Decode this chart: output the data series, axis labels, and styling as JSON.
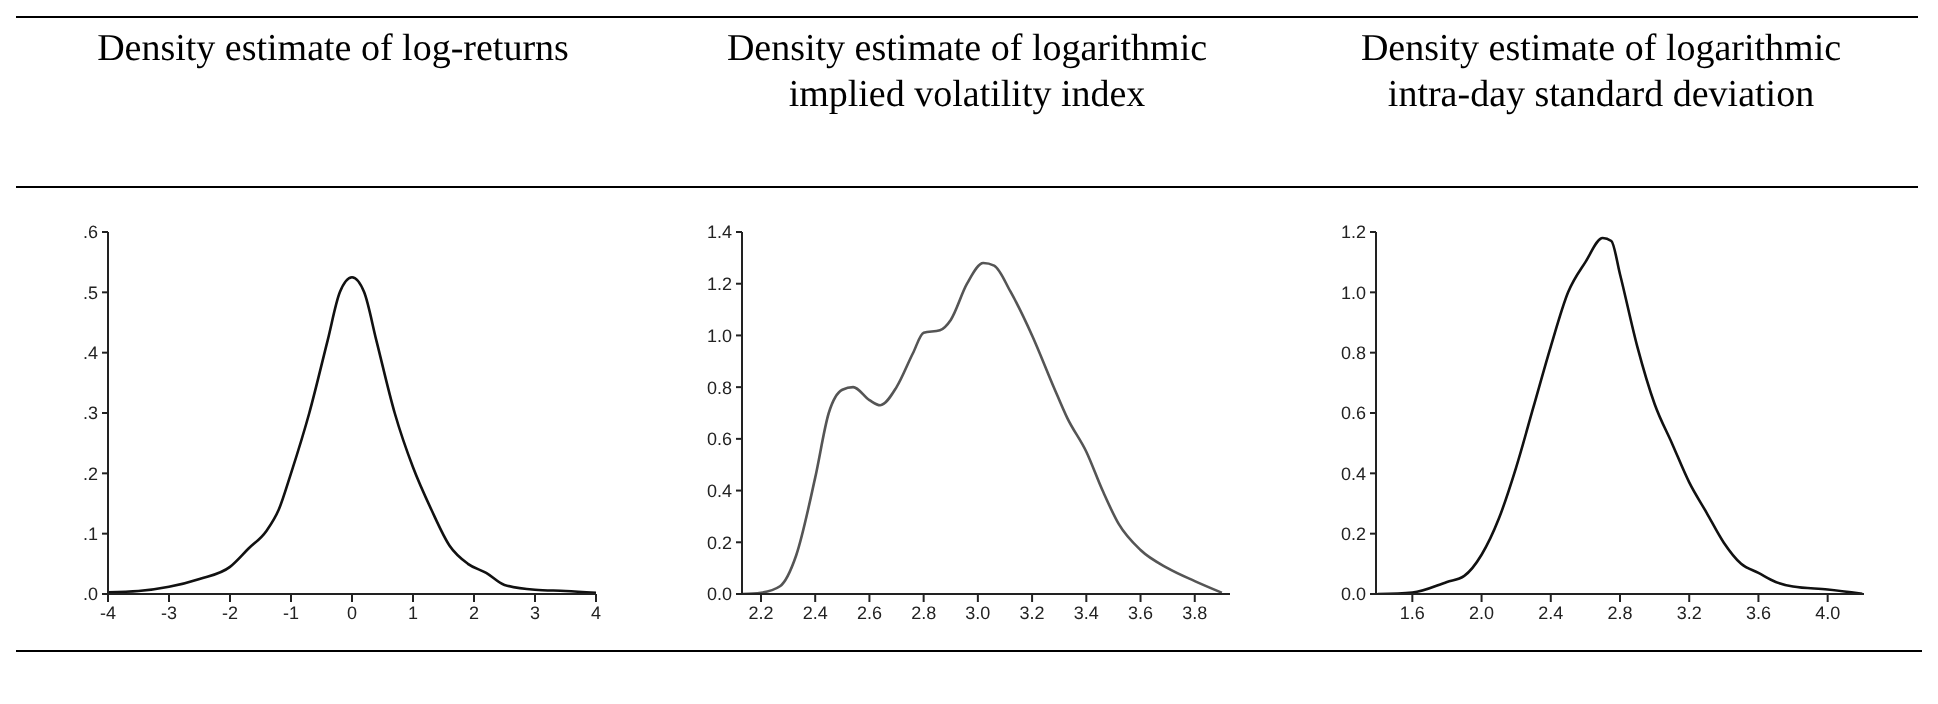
{
  "chart_data": [
    {
      "type": "line",
      "title": "Density estimate of log-returns",
      "xlim": [
        -4,
        4
      ],
      "xticks": [
        -4,
        -3,
        -2,
        -1,
        0,
        1,
        2,
        3,
        4
      ],
      "ylim": [
        0,
        0.6
      ],
      "yticks": [
        {
          "value": 0,
          "label": ".0"
        },
        {
          "value": 0.1,
          "label": ".1"
        },
        {
          "value": 0.2,
          "label": ".2"
        },
        {
          "value": 0.3,
          "label": ".3"
        },
        {
          "value": 0.4,
          "label": ".4"
        },
        {
          "value": 0.5,
          "label": ".5"
        },
        {
          "value": 0.6,
          "label": ".6"
        }
      ],
      "grid": false,
      "legend": false,
      "marker": "none",
      "line_style": "solid",
      "x": [
        -4,
        -3.5,
        -3,
        -2.5,
        -2,
        -1.7,
        -1.4,
        -1.2,
        -1,
        -0.7,
        -0.4,
        -0.2,
        0,
        0.2,
        0.4,
        0.7,
        1,
        1.3,
        1.6,
        1.9,
        2.2,
        2.5,
        3,
        3.5,
        4
      ],
      "series": [
        {
          "color": "#111111",
          "values": [
            0.003,
            0.005,
            0.012,
            0.025,
            0.045,
            0.075,
            0.105,
            0.14,
            0.2,
            0.3,
            0.42,
            0.5,
            0.525,
            0.5,
            0.42,
            0.3,
            0.21,
            0.14,
            0.08,
            0.05,
            0.035,
            0.015,
            0.007,
            0.005,
            0.002
          ]
        }
      ]
    },
    {
      "type": "line",
      "title": "Density estimate of logarithmic implied volatility index",
      "xlim": [
        2.13,
        3.93
      ],
      "xticks": [
        {
          "value": 2.2,
          "label": "2.2"
        },
        {
          "value": 2.4,
          "label": "2.4"
        },
        {
          "value": 2.6,
          "label": "2.6"
        },
        {
          "value": 2.8,
          "label": "2.8"
        },
        {
          "value": 3,
          "label": "3.0"
        },
        {
          "value": 3.2,
          "label": "3.2"
        },
        {
          "value": 3.4,
          "label": "3.4"
        },
        {
          "value": 3.6,
          "label": "3.6"
        },
        {
          "value": 3.8,
          "label": "3.8"
        }
      ],
      "ylim": [
        0,
        1.4
      ],
      "yticks": [
        {
          "value": 0,
          "label": "0.0"
        },
        {
          "value": 0.2,
          "label": "0.2"
        },
        {
          "value": 0.4,
          "label": "0.4"
        },
        {
          "value": 0.6,
          "label": "0.6"
        },
        {
          "value": 0.8,
          "label": "0.8"
        },
        {
          "value": 1,
          "label": "1.0"
        },
        {
          "value": 1.2,
          "label": "1.2"
        },
        {
          "value": 1.4,
          "label": "1.4"
        }
      ],
      "grid": false,
      "legend": false,
      "marker": "none",
      "line_style": "solid",
      "x": [
        2.13,
        2.2,
        2.27,
        2.33,
        2.4,
        2.45,
        2.5,
        2.54,
        2.6,
        2.64,
        2.7,
        2.76,
        2.8,
        2.86,
        2.9,
        2.96,
        3.02,
        3.06,
        3.12,
        3.2,
        3.28,
        3.33,
        3.4,
        3.46,
        3.52,
        3.6,
        3.7,
        3.8,
        3.9
      ],
      "series": [
        {
          "color": "#555555",
          "values": [
            0,
            0.005,
            0.03,
            0.15,
            0.45,
            0.7,
            0.79,
            0.8,
            0.75,
            0.73,
            0.8,
            0.93,
            1.01,
            1.02,
            1.06,
            1.2,
            1.28,
            1.27,
            1.17,
            1.0,
            0.8,
            0.68,
            0.55,
            0.4,
            0.27,
            0.17,
            0.1,
            0.05,
            0.005
          ]
        }
      ]
    },
    {
      "type": "line",
      "title": "Density estimate of logarithmic intra-day standard deviation",
      "xlim": [
        1.39,
        4.21
      ],
      "xticks": [
        {
          "value": 1.6,
          "label": "1.6"
        },
        {
          "value": 2,
          "label": "2.0"
        },
        {
          "value": 2.4,
          "label": "2.4"
        },
        {
          "value": 2.8,
          "label": "2.8"
        },
        {
          "value": 3.2,
          "label": "3.2"
        },
        {
          "value": 3.6,
          "label": "3.6"
        },
        {
          "value": 4,
          "label": "4.0"
        }
      ],
      "ylim": [
        0,
        1.2
      ],
      "yticks": [
        {
          "value": 0,
          "label": "0.0"
        },
        {
          "value": 0.2,
          "label": "0.2"
        },
        {
          "value": 0.4,
          "label": "0.4"
        },
        {
          "value": 0.6,
          "label": "0.6"
        },
        {
          "value": 0.8,
          "label": "0.8"
        },
        {
          "value": 1,
          "label": "1.0"
        },
        {
          "value": 1.2,
          "label": "1.2"
        }
      ],
      "grid": false,
      "legend": false,
      "marker": "none",
      "line_style": "solid",
      "x": [
        1.4,
        1.6,
        1.8,
        1.9,
        2.0,
        2.1,
        2.2,
        2.3,
        2.4,
        2.5,
        2.6,
        2.7,
        2.75,
        2.8,
        2.9,
        3.0,
        3.1,
        3.2,
        3.3,
        3.4,
        3.5,
        3.6,
        3.7,
        3.8,
        4.0,
        4.2
      ],
      "series": [
        {
          "color": "#111111",
          "values": [
            0,
            0.005,
            0.04,
            0.06,
            0.13,
            0.25,
            0.42,
            0.62,
            0.82,
            1.0,
            1.1,
            1.18,
            1.17,
            1.06,
            0.82,
            0.63,
            0.5,
            0.37,
            0.27,
            0.17,
            0.1,
            0.07,
            0.04,
            0.025,
            0.015,
            0.001
          ]
        }
      ]
    }
  ]
}
